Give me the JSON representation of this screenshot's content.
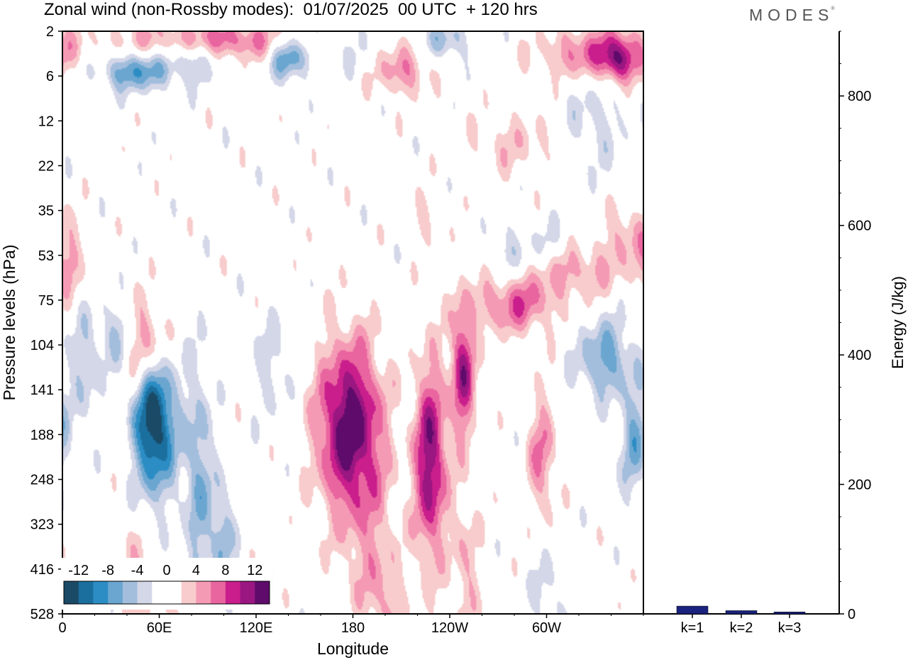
{
  "header": {
    "title": "Zonal wind (non-Rossby modes):  01/07/2025  00 UTC  + 120 hrs",
    "logo": "MODES"
  },
  "colors": {
    "neg": [
      "#1a4a66",
      "#1b6f9e",
      "#2c8dc4",
      "#6aa6d0",
      "#a3bedc",
      "#d4d7e8"
    ],
    "pos": [
      "#f8cccc",
      "#f59ab5",
      "#e9659f",
      "#c91e8c",
      "#9a1680",
      "#5e0b6b"
    ]
  },
  "chart_data": [
    {
      "type": "heatmap",
      "xlabel": "Longitude",
      "ylabel": "Pressure levels (hPa)",
      "x_ticks": [
        "0",
        "60E",
        "120E",
        "180",
        "120W",
        "60W"
      ],
      "x_tick_values": [
        0,
        60,
        120,
        180,
        240,
        300
      ],
      "xlim": [
        0,
        360
      ],
      "y_ticks": [
        "2",
        "6",
        "12",
        "22",
        "35",
        "53",
        "75",
        "104",
        "141",
        "188",
        "248",
        "323",
        "416",
        "528"
      ],
      "colorbar": {
        "labels": [
          "-12",
          "-8",
          "-4",
          "0",
          "4",
          "8",
          "12"
        ],
        "levels": [
          -14,
          -12,
          -10,
          -8,
          -6,
          -4,
          -2,
          2,
          4,
          6,
          8,
          10,
          12,
          14
        ]
      },
      "features": [
        {
          "lon": 57,
          "lev": 8.7,
          "slon": 9,
          "slev": 1.1,
          "amp": -15,
          "rot": 0.6
        },
        {
          "lon": 84,
          "lev": 10.0,
          "slon": 6,
          "slev": 1.8,
          "amp": -6,
          "rot": 0.2
        },
        {
          "lon": 99,
          "lev": 11.3,
          "slon": 5,
          "slev": 0.9,
          "amp": -6,
          "rot": 0
        },
        {
          "lon": 36,
          "lev": 6.8,
          "slon": 9,
          "slev": 0.6,
          "amp": -6,
          "rot": 0
        },
        {
          "lon": 14,
          "lev": 7.5,
          "slon": 6,
          "slev": 0.9,
          "amp": -4,
          "rot": 0
        },
        {
          "lon": 50,
          "lev": 7.0,
          "slon": 10,
          "slev": 0.7,
          "amp": 9,
          "rot": 0.5
        },
        {
          "lon": 178,
          "lev": 8.8,
          "slon": 14,
          "slev": 1.3,
          "amp": 14,
          "rot": 0
        },
        {
          "lon": 191,
          "lev": 11.5,
          "slon": 12,
          "slev": 1.3,
          "amp": 3.5,
          "rot": 0
        },
        {
          "lon": 200,
          "lev": 12.8,
          "slon": 8,
          "slev": 0.7,
          "amp": 3,
          "rot": 0
        },
        {
          "lon": 228,
          "lev": 9.6,
          "slon": 7,
          "slev": 1.5,
          "amp": 12,
          "rot": 0.4
        },
        {
          "lon": 248,
          "lev": 7.6,
          "slon": 5,
          "slev": 1.0,
          "amp": 11,
          "rot": 0.5
        },
        {
          "lon": 280,
          "lev": 6.1,
          "slon": 18,
          "slev": 0.45,
          "amp": 7,
          "rot": 0.3
        },
        {
          "lon": 318,
          "lev": 5.3,
          "slon": 20,
          "slev": 0.45,
          "amp": 5,
          "rot": 0.3
        },
        {
          "lon": 250,
          "lev": 12.0,
          "slon": 6,
          "slev": 1.2,
          "amp": 4,
          "rot": 0
        },
        {
          "lon": 297,
          "lev": 9.5,
          "slon": 6,
          "slev": 1.0,
          "amp": 6,
          "rot": 0
        },
        {
          "lon": 350,
          "lev": 4.5,
          "slon": 10,
          "slev": 0.5,
          "amp": 4,
          "rot": 0
        },
        {
          "lon": 4,
          "lev": 5.2,
          "slon": 6,
          "slev": 0.6,
          "amp": 4,
          "rot": 0
        },
        {
          "lon": 336,
          "lev": 7.3,
          "slon": 12,
          "slev": 0.6,
          "amp": -7,
          "rot": 0.6
        },
        {
          "lon": 357,
          "lev": 9.0,
          "slon": 6,
          "slev": 0.8,
          "amp": -4,
          "rot": 0
        },
        {
          "lon": 225,
          "lev": 4.2,
          "slon": 5,
          "slev": 0.4,
          "amp": 3,
          "rot": 0
        },
        {
          "lon": 275,
          "lev": 5.0,
          "slon": 8,
          "slev": 0.4,
          "amp": -3,
          "rot": 0
        },
        {
          "lon": 130,
          "lev": 7.5,
          "slon": 9,
          "slev": 0.8,
          "amp": -3,
          "rot": 0
        },
        {
          "lon": 45,
          "lev": 12.3,
          "slon": 7,
          "slev": 0.9,
          "amp": 4,
          "rot": 0
        },
        {
          "lon": 75,
          "lev": 13.3,
          "slon": 8,
          "slev": 0.7,
          "amp": 4,
          "rot": 0
        },
        {
          "lon": 300,
          "lev": 12.7,
          "slon": 7,
          "slev": 0.9,
          "amp": -3,
          "rot": 0
        },
        {
          "lon": 352,
          "lev": 9.3,
          "slon": 5,
          "slev": 1.0,
          "amp": -3,
          "rot": 0
        },
        {
          "lon": 100,
          "lev": 0.2,
          "slon": 45,
          "slev": 0.3,
          "amp": 7,
          "rot": 0
        },
        {
          "lon": 140,
          "lev": 0.55,
          "slon": 8,
          "slev": 0.35,
          "amp": -8,
          "rot": 0.3
        },
        {
          "lon": 45,
          "lev": 0.9,
          "slon": 16,
          "slev": 0.3,
          "amp": -8,
          "rot": 0
        },
        {
          "lon": 80,
          "lev": 0.6,
          "slon": 10,
          "slev": 0.35,
          "amp": -5,
          "rot": 0
        },
        {
          "lon": 210,
          "lev": 0.85,
          "slon": 12,
          "slev": 0.4,
          "amp": 6,
          "rot": 0
        },
        {
          "lon": 334,
          "lev": 0.5,
          "slon": 24,
          "slev": 0.4,
          "amp": 8,
          "rot": 0
        },
        {
          "lon": 345,
          "lev": 0.7,
          "slon": 6,
          "slev": 0.35,
          "amp": 7,
          "rot": 0
        },
        {
          "lon": 238,
          "lev": 0.2,
          "slon": 10,
          "slev": 0.3,
          "amp": -5,
          "rot": 0
        },
        {
          "lon": 170,
          "lev": 0.3,
          "slon": 25,
          "slev": 0.4,
          "amp": -3,
          "rot": 0
        },
        {
          "lon": 280,
          "lev": 2.5,
          "slon": 20,
          "slev": 0.5,
          "amp": 3,
          "rot": 0
        },
        {
          "lon": 330,
          "lev": 2.0,
          "slon": 15,
          "slev": 0.8,
          "amp": -3,
          "rot": 0
        },
        {
          "lon": 300,
          "lev": 4.8,
          "slon": 14,
          "slev": 0.4,
          "amp": -3,
          "rot": 0
        }
      ]
    },
    {
      "type": "bar",
      "ylabel": "Energy (J/kg)",
      "categories": [
        "k=1",
        "k=2",
        "k=3"
      ],
      "values": [
        12,
        5,
        3
      ],
      "ylim": [
        0,
        900
      ],
      "y_ticks": [
        "0",
        "200",
        "400",
        "600",
        "800"
      ],
      "y_tick_values": [
        0,
        200,
        400,
        600,
        800
      ],
      "bar_color": "#1a237e"
    }
  ]
}
